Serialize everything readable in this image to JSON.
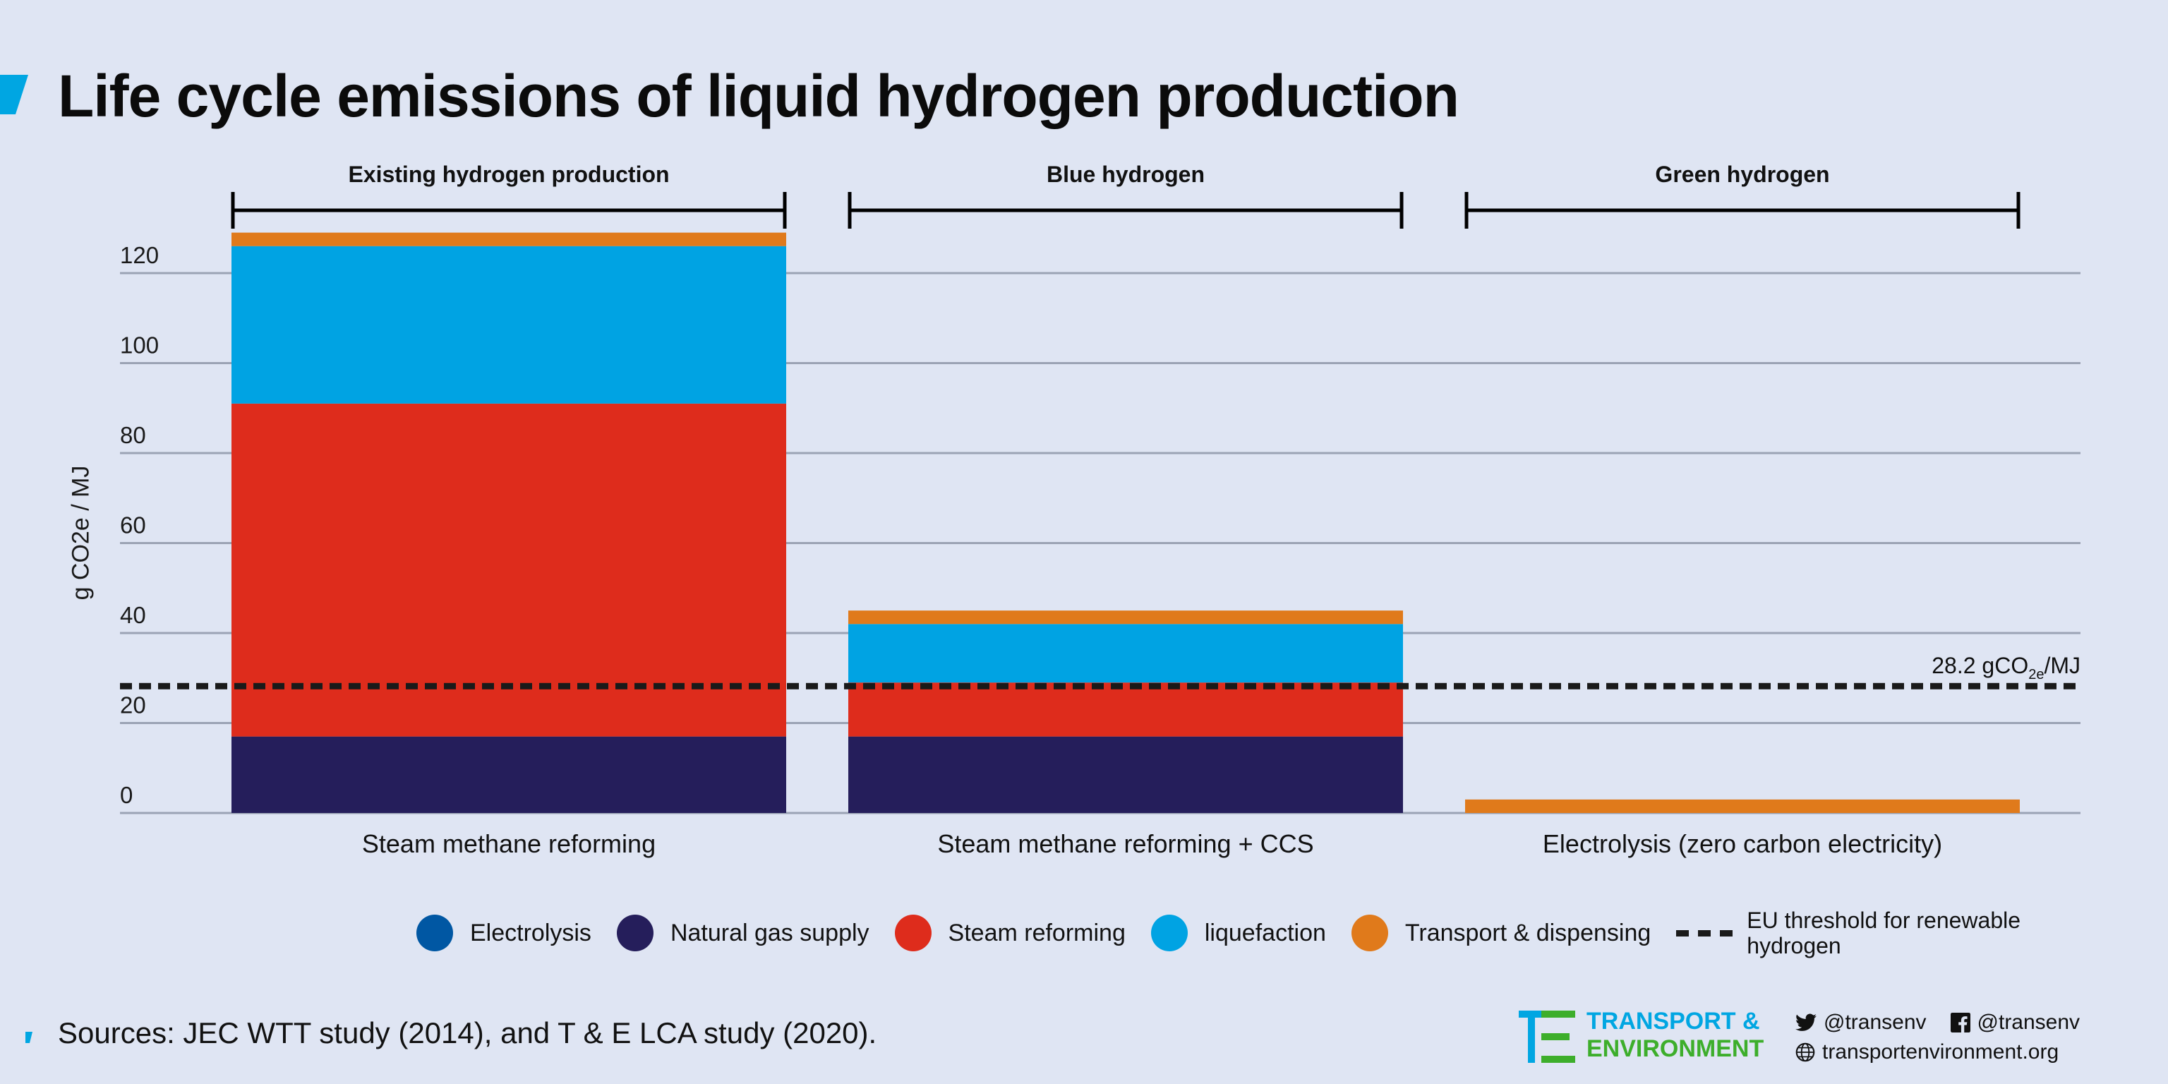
{
  "title": "Life cycle emissions of liquid hydrogen production",
  "chart_data": {
    "type": "bar",
    "stacked": true,
    "ylabel": "g CO2e / MJ",
    "ylim": [
      0,
      130
    ],
    "yticks": [
      0,
      20,
      40,
      60,
      80,
      100,
      120
    ],
    "grid": true,
    "groups": [
      "Existing hydrogen production",
      "Blue hydrogen",
      "Green hydrogen"
    ],
    "categories": [
      "Steam methane reforming",
      "Steam methane reforming + CCS",
      "Electrolysis (zero carbon electricity)"
    ],
    "series": [
      {
        "name": "Electrolysis",
        "color": "#0057a3",
        "values": [
          0,
          0,
          0
        ]
      },
      {
        "name": "Natural gas supply",
        "color": "#251e5b",
        "values": [
          17,
          17,
          0
        ]
      },
      {
        "name": "Steam reforming",
        "color": "#de2c1c",
        "values": [
          74,
          12,
          0
        ]
      },
      {
        "name": "liquefaction",
        "color": "#00a3e3",
        "values": [
          35,
          13,
          0
        ]
      },
      {
        "name": "Transport & dispensing",
        "color": "#e07a1b",
        "values": [
          3,
          3,
          3
        ]
      }
    ],
    "threshold": {
      "value": 28.2,
      "label_main": "28.2 gCO",
      "label_sub": "2e",
      "label_unit": "/MJ",
      "legend": "EU threshold for renewable hydrogen"
    },
    "legend_placement": "bottom"
  },
  "footer": {
    "sources": "Sources: JEC WTT study (2014),  and T & E  LCA study (2020).",
    "logo_line1": "TRANSPORT &",
    "logo_line2": "ENVIRONMENT",
    "twitter": "@transenv",
    "facebook": "@transenv",
    "website": "transportenvironment.org"
  },
  "colors": {
    "background": "#dfe5f3",
    "gridline": "#9ba3b4",
    "brand_blue": "#00a6e2",
    "brand_green": "#3dae2b"
  }
}
